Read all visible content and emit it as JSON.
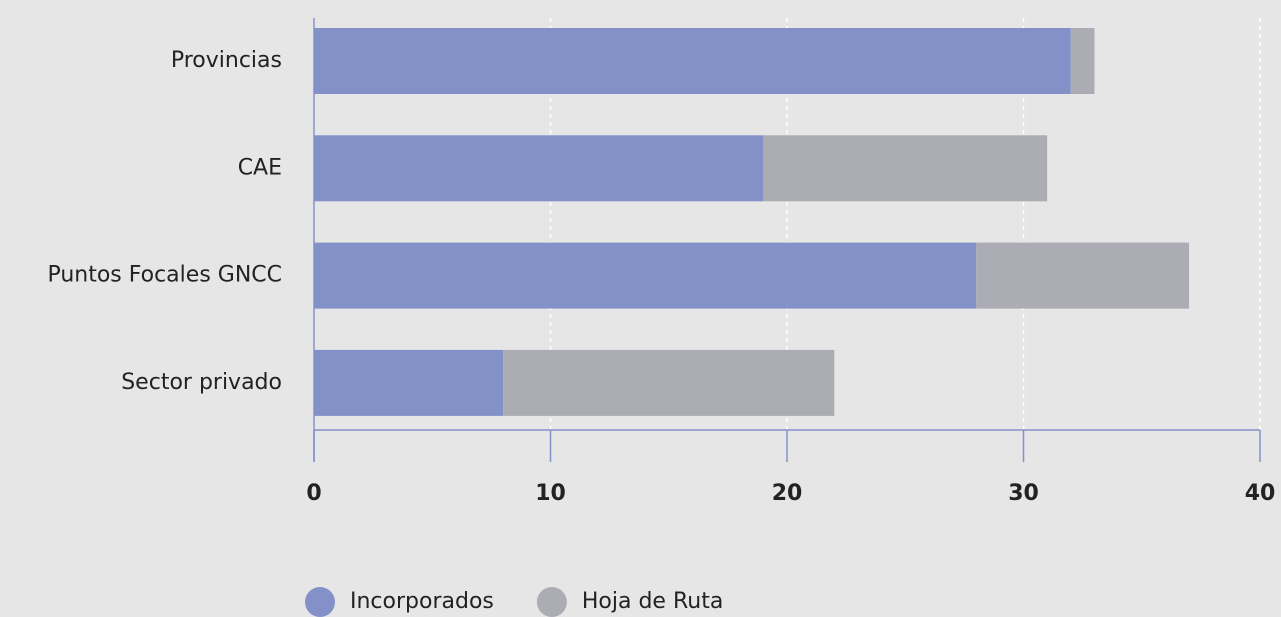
{
  "chart_data": {
    "type": "stacked_bar_horizontal",
    "categories": [
      "Provincias",
      "CAE",
      "Puntos Focales GNCC",
      "Sector privado"
    ],
    "series": [
      {
        "name": "Incorporados",
        "color": "#8490c8",
        "values": [
          32,
          19,
          28,
          8
        ]
      },
      {
        "name": "Hoja de Ruta",
        "color": "#abacb4",
        "values": [
          1,
          12,
          9,
          14
        ]
      }
    ],
    "xlim": [
      0,
      40
    ],
    "xticks": [
      0,
      10,
      20,
      30,
      40
    ],
    "grid": true
  }
}
